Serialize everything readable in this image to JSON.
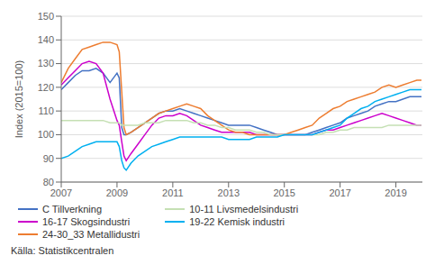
{
  "chart_data": {
    "type": "line",
    "y_label": "Index (2015=100)",
    "annotations": [
      "Källa: Statistikcentralen"
    ],
    "xlim": [
      2007.0,
      2019.95
    ],
    "xticks": [
      2007,
      2009,
      2011,
      2013,
      2015,
      2017,
      2019
    ],
    "ylim": [
      80,
      150
    ],
    "yticks": [
      80,
      90,
      100,
      110,
      120,
      130,
      140,
      150
    ],
    "grid": "y",
    "legend": "bottom",
    "x": [
      2007.0,
      2007.25,
      2007.5,
      2007.75,
      2008.0,
      2008.25,
      2008.5,
      2008.75,
      2009.0,
      2009.08,
      2009.17,
      2009.25,
      2009.33,
      2009.5,
      2009.75,
      2010.0,
      2010.25,
      2010.5,
      2010.75,
      2011.0,
      2011.25,
      2011.5,
      2011.75,
      2012.0,
      2012.25,
      2012.5,
      2012.75,
      2013.0,
      2013.25,
      2013.5,
      2013.75,
      2014.0,
      2014.25,
      2014.5,
      2014.75,
      2015.0,
      2015.25,
      2015.5,
      2015.75,
      2016.0,
      2016.25,
      2016.5,
      2016.75,
      2017.0,
      2017.25,
      2017.5,
      2017.75,
      2018.0,
      2018.25,
      2018.5,
      2018.75,
      2019.0,
      2019.25,
      2019.5,
      2019.75,
      2019.917
    ],
    "series": [
      {
        "name": "C Tillverkning",
        "color": "#4472c4",
        "values": [
          119,
          122,
          125,
          127,
          127,
          128,
          126,
          122,
          126,
          124,
          103,
          100,
          100,
          101,
          103,
          105,
          107,
          109,
          110,
          110,
          111,
          110,
          109,
          108,
          107,
          106,
          105,
          104,
          104,
          104,
          104,
          103,
          102,
          101,
          100,
          100,
          100,
          100,
          100,
          101,
          102,
          103,
          104,
          105,
          107,
          108,
          109,
          110,
          112,
          113,
          114,
          114,
          115,
          116,
          116,
          116
        ]
      },
      {
        "name": "16-17 Skogsindustri",
        "color": "#cc00cc",
        "values": [
          121,
          124,
          127,
          130,
          131,
          130,
          126,
          115,
          106,
          104,
          97,
          91,
          89,
          92,
          96,
          100,
          104,
          107,
          108,
          108,
          109,
          108,
          106,
          104,
          103,
          102,
          101,
          101,
          101,
          101,
          101,
          100,
          100,
          100,
          100,
          100,
          100,
          100,
          100,
          100,
          101,
          102,
          102,
          103,
          104,
          105,
          106,
          107,
          108,
          109,
          108,
          107,
          106,
          105,
          104,
          104
        ]
      },
      {
        "name": "24-30_33 Metallidustri",
        "color": "#ed7d31",
        "values": [
          122,
          128,
          132,
          136,
          137,
          138,
          139,
          139,
          138,
          135,
          118,
          103,
          100,
          101,
          103,
          105,
          107,
          109,
          110,
          111,
          112,
          113,
          112,
          111,
          108,
          106,
          104,
          102,
          101,
          101,
          100,
          100,
          100,
          100,
          100,
          100,
          101,
          102,
          103,
          104,
          107,
          109,
          111,
          112,
          114,
          115,
          116,
          117,
          118,
          120,
          121,
          120,
          121,
          122,
          123,
          123
        ]
      },
      {
        "name": "10-11 Livsmedelsindustri",
        "color": "#c5e0b4",
        "values": [
          106,
          106,
          106,
          106,
          106,
          106,
          106,
          105,
          105,
          105,
          104,
          104,
          104,
          104,
          104,
          105,
          105,
          105,
          106,
          106,
          106,
          106,
          105,
          105,
          104,
          104,
          103,
          103,
          102,
          102,
          102,
          101,
          101,
          100,
          100,
          100,
          100,
          100,
          100,
          100,
          100,
          101,
          101,
          102,
          102,
          103,
          103,
          103,
          103,
          103,
          104,
          104,
          104,
          104,
          104,
          104
        ]
      },
      {
        "name": "19-22 Kemisk industri",
        "color": "#00b0f0",
        "values": [
          90,
          91,
          93,
          95,
          96,
          97,
          97,
          97,
          97,
          95,
          89,
          86,
          85,
          88,
          91,
          93,
          95,
          96,
          97,
          98,
          99,
          99,
          99,
          99,
          99,
          99,
          99,
          98,
          98,
          98,
          98,
          99,
          99,
          99,
          99,
          100,
          100,
          100,
          100,
          100,
          101,
          102,
          103,
          104,
          107,
          109,
          111,
          112,
          114,
          115,
          116,
          117,
          118,
          119,
          119,
          119
        ]
      }
    ]
  }
}
